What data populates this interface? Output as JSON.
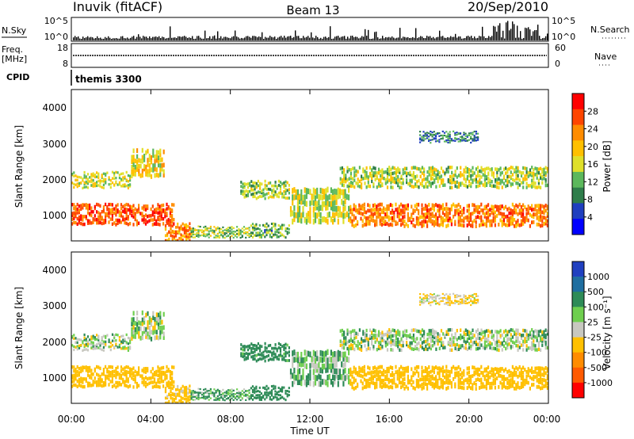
{
  "header": {
    "station": "Inuvik (fitACF)",
    "beam": "Beam 13",
    "date": "20/Sep/2010"
  },
  "nsky_panel": {
    "left_label": "N.Sky",
    "left_ticks": [
      "10^5",
      "10^0"
    ],
    "right_label": "N.Search",
    "right_ticks": [
      "10^5",
      "10^0"
    ]
  },
  "freq_panel": {
    "left_label_line1": "Freq.",
    "left_label_line2": "[MHz]",
    "left_ticks": [
      "18",
      "8"
    ],
    "right_label": "Nave",
    "right_ticks": [
      "60",
      "0"
    ]
  },
  "cpid_panel": {
    "label": "CPID",
    "value": "themis 3300"
  },
  "power_panel": {
    "ylabel": "Slant Range [km]",
    "yticks": [
      "4000",
      "3000",
      "2000",
      "1000"
    ],
    "colorbar_label": "Power [dB]",
    "colorbar_ticks": [
      "28",
      "24",
      "20",
      "16",
      "12",
      "8",
      "4"
    ],
    "colors": [
      "#ff0000",
      "#ff4500",
      "#ff8c00",
      "#ffc000",
      "#dfe02a",
      "#5cb85c",
      "#2e7d4a",
      "#1f3fbf",
      "#0000ff"
    ]
  },
  "velocity_panel": {
    "ylabel": "Slant Range [km]",
    "yticks": [
      "4000",
      "3000",
      "2000",
      "1000"
    ],
    "colorbar_label": "Velocity [m s⁻¹]",
    "colorbar_ticks": [
      "1000",
      "500",
      "100",
      "25",
      "-25",
      "-100",
      "-500",
      "-1000"
    ],
    "colors": [
      "#2040c0",
      "#1f6ea0",
      "#2e8b57",
      "#6fcf4f",
      "#c8c8c0",
      "#ffc000",
      "#ff8c00",
      "#ff5a00",
      "#ff0000"
    ]
  },
  "xaxis": {
    "label": "Time UT",
    "ticks": [
      "00:00",
      "04:00",
      "08:00",
      "12:00",
      "16:00",
      "20:00",
      "00:00"
    ]
  },
  "chart_data": {
    "type": "heatmap",
    "description_units": "time in UT hours, slant range in km",
    "x_range": [
      0,
      24
    ],
    "y_range": [
      200,
      4500
    ],
    "regions": [
      {
        "t0": 0.0,
        "t1": 5.2,
        "r0": 650,
        "r1": 1250,
        "power": 26,
        "velocity": -200
      },
      {
        "t0": 0.0,
        "t1": 3.0,
        "r0": 1700,
        "r1": 2150,
        "power": 16,
        "velocity": 10
      },
      {
        "t0": 3.0,
        "t1": 4.7,
        "r0": 2000,
        "r1": 2800,
        "power": 18,
        "velocity": 10
      },
      {
        "t0": 4.7,
        "t1": 6.0,
        "r0": 200,
        "r1": 700,
        "power": 22,
        "velocity": -150
      },
      {
        "t0": 6.0,
        "t1": 9.0,
        "r0": 300,
        "r1": 600,
        "power": 14,
        "velocity": 80
      },
      {
        "t0": 8.5,
        "t1": 11.0,
        "r0": 1400,
        "r1": 1900,
        "power": 14,
        "velocity": 150
      },
      {
        "t0": 9.0,
        "t1": 11.0,
        "r0": 300,
        "r1": 700,
        "power": 12,
        "velocity": 200
      },
      {
        "t0": 11.0,
        "t1": 14.0,
        "r0": 700,
        "r1": 1700,
        "power": 16,
        "velocity": 40
      },
      {
        "t0": 13.5,
        "t1": 24.0,
        "r0": 1700,
        "r1": 2300,
        "power": 15,
        "velocity": 10
      },
      {
        "t0": 14.0,
        "t1": 24.0,
        "r0": 600,
        "r1": 1250,
        "power": 24,
        "velocity": -180
      },
      {
        "t0": 17.5,
        "t1": 20.5,
        "r0": 3000,
        "r1": 3300,
        "power": 9,
        "velocity": -80
      }
    ]
  }
}
